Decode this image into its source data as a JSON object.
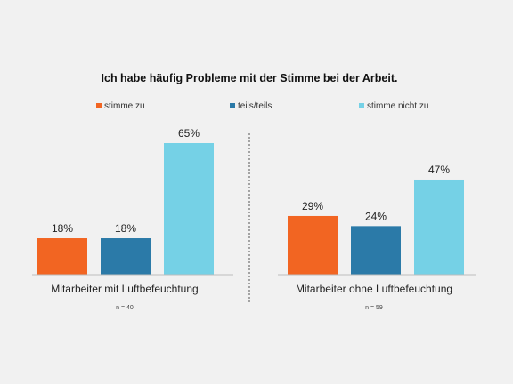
{
  "chart_data": {
    "type": "bar",
    "title": "Ich habe häufig Probleme mit der Stimme bei der Arbeit.",
    "categories": [
      "Mitarbeiter mit Luftbefeuchtung",
      "Mitarbeiter ohne Luftbefeuchtung"
    ],
    "sample_sizes": [
      "n = 40",
      "n = 59"
    ],
    "series": [
      {
        "name": "stimme zu",
        "color": "#f26522",
        "values": [
          18,
          29
        ]
      },
      {
        "name": "teils/teils",
        "color": "#2b7aa8",
        "values": [
          18,
          24
        ]
      },
      {
        "name": "stimme nicht zu",
        "color": "#75d1e6",
        "values": [
          65,
          47
        ]
      }
    ],
    "value_suffix": "%",
    "ylim": [
      0,
      65
    ],
    "legend_position": "top",
    "grid": false
  }
}
